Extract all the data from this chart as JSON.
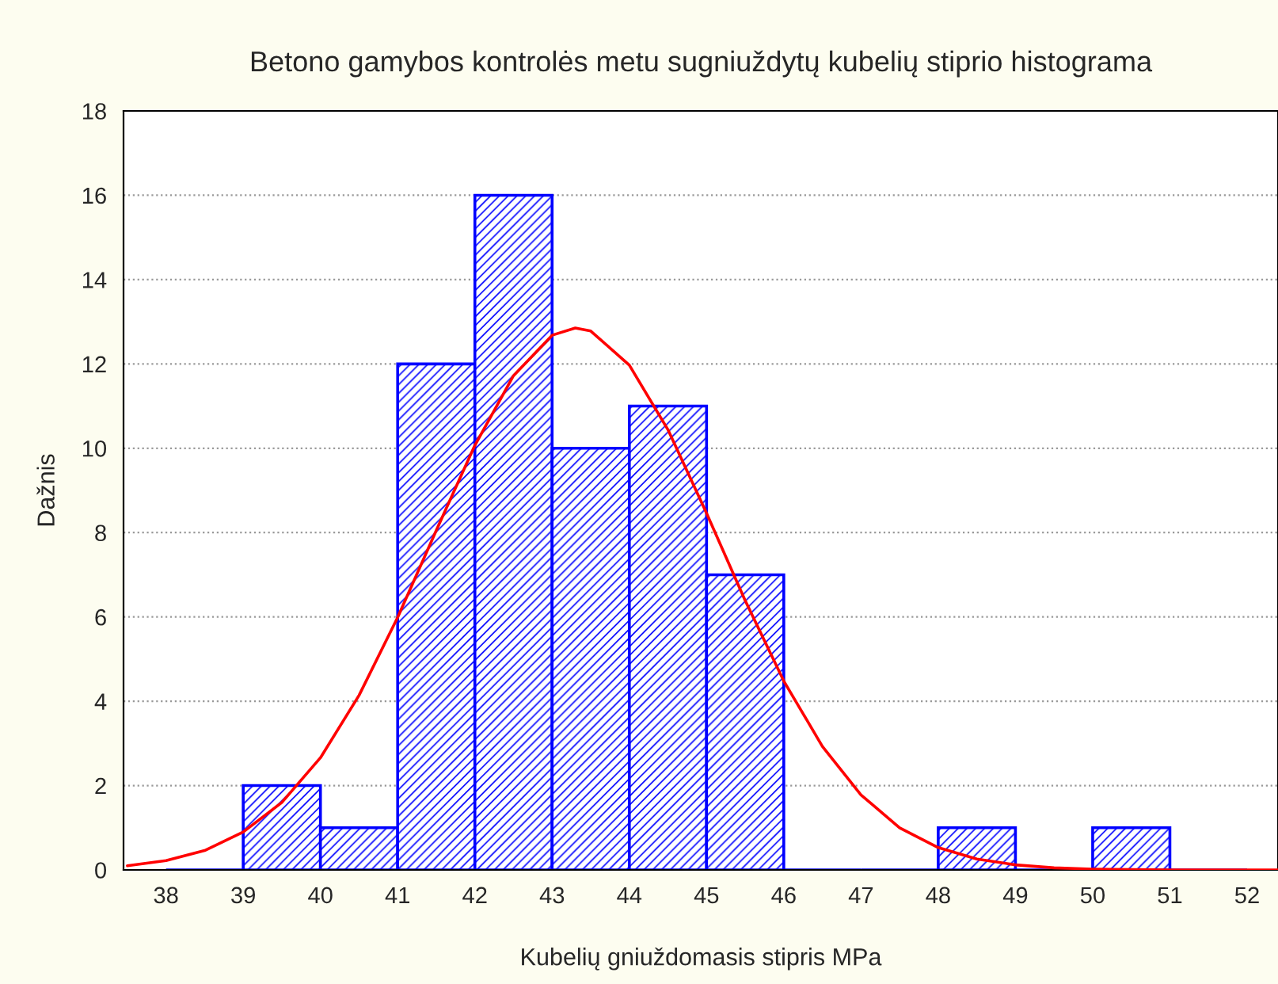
{
  "chart_data": {
    "type": "histogram",
    "title": "Betono gamybos kontrolės metu sugniuždytų kubelių stiprio histograma",
    "xlabel": "Kubelių gniuždomasis stipris MPa",
    "ylabel": "Dažnis",
    "bins": [
      38,
      39,
      40,
      41,
      42,
      43,
      44,
      45,
      46,
      47,
      48,
      49,
      50,
      51,
      52
    ],
    "series": [
      {
        "color": "#0000ff",
        "values": [
          0,
          2,
          1,
          12,
          16,
          10,
          11,
          7,
          0,
          0,
          1,
          0,
          1,
          0
        ]
      },
      {
        "type": "line",
        "color": "#ff0000",
        "x": [
          37.5,
          38,
          38.5,
          39,
          39.5,
          40,
          40.5,
          41,
          41.5,
          42,
          42.5,
          43,
          43.3,
          43.5,
          44,
          44.5,
          45,
          45.5,
          46,
          46.5,
          47,
          47.5,
          48,
          48.5,
          49,
          49.5,
          50,
          51,
          52,
          52.4
        ],
        "values": [
          0.1,
          0.22,
          0.46,
          0.9,
          1.6,
          2.66,
          4.14,
          5.99,
          8.05,
          10.07,
          11.72,
          12.68,
          12.85,
          12.78,
          11.97,
          10.44,
          8.46,
          6.39,
          4.48,
          2.93,
          1.78,
          1.0,
          0.53,
          0.26,
          0.12,
          0.05,
          0.02,
          0,
          0,
          0
        ]
      }
    ],
    "xlim": [
      37.45,
      52.4
    ],
    "xticks": [
      38,
      39,
      40,
      41,
      42,
      43,
      44,
      45,
      46,
      47,
      48,
      49,
      50,
      51,
      52
    ],
    "ylim": [
      0,
      18
    ],
    "yticks": [
      0,
      2,
      4,
      6,
      8,
      10,
      12,
      14,
      16,
      18
    ],
    "grid": "y",
    "marker": "none",
    "line_style": "solid"
  }
}
